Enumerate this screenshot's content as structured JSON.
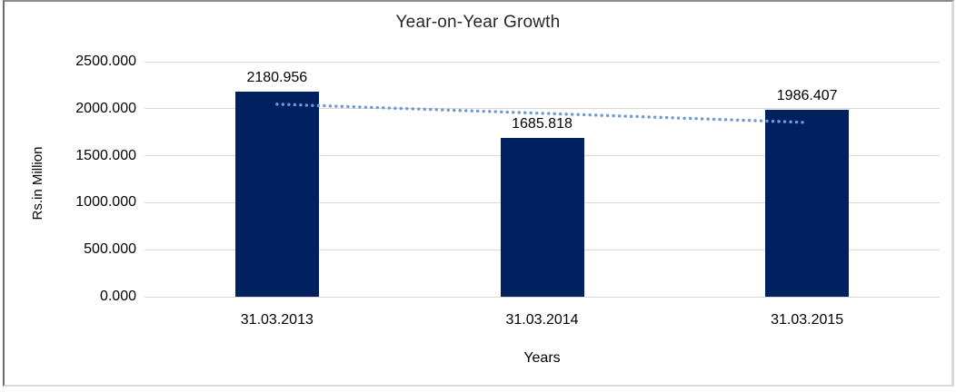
{
  "chart_data": {
    "type": "bar",
    "title": "Year-on-Year Growth",
    "xlabel": "Years",
    "ylabel": "Rs.in Million",
    "categories": [
      "31.03.2013",
      "31.03.2014",
      "31.03.2015"
    ],
    "values": [
      2180.956,
      1685.818,
      1986.407
    ],
    "value_labels": [
      "2180.956",
      "1685.818",
      "1986.407"
    ],
    "y_ticks": [
      "2500.000",
      "2000.000",
      "1500.000",
      "1000.000",
      "500.000",
      "0.000"
    ],
    "ylim": [
      0,
      2500
    ],
    "grid": true,
    "legend": "none",
    "trendline": {
      "type": "linear",
      "style": "dotted",
      "color": "#6e9bd2"
    },
    "colors": {
      "bar": "#002060",
      "gridline": "#d9d9d9",
      "text": "#000000",
      "title": "#262626"
    }
  }
}
